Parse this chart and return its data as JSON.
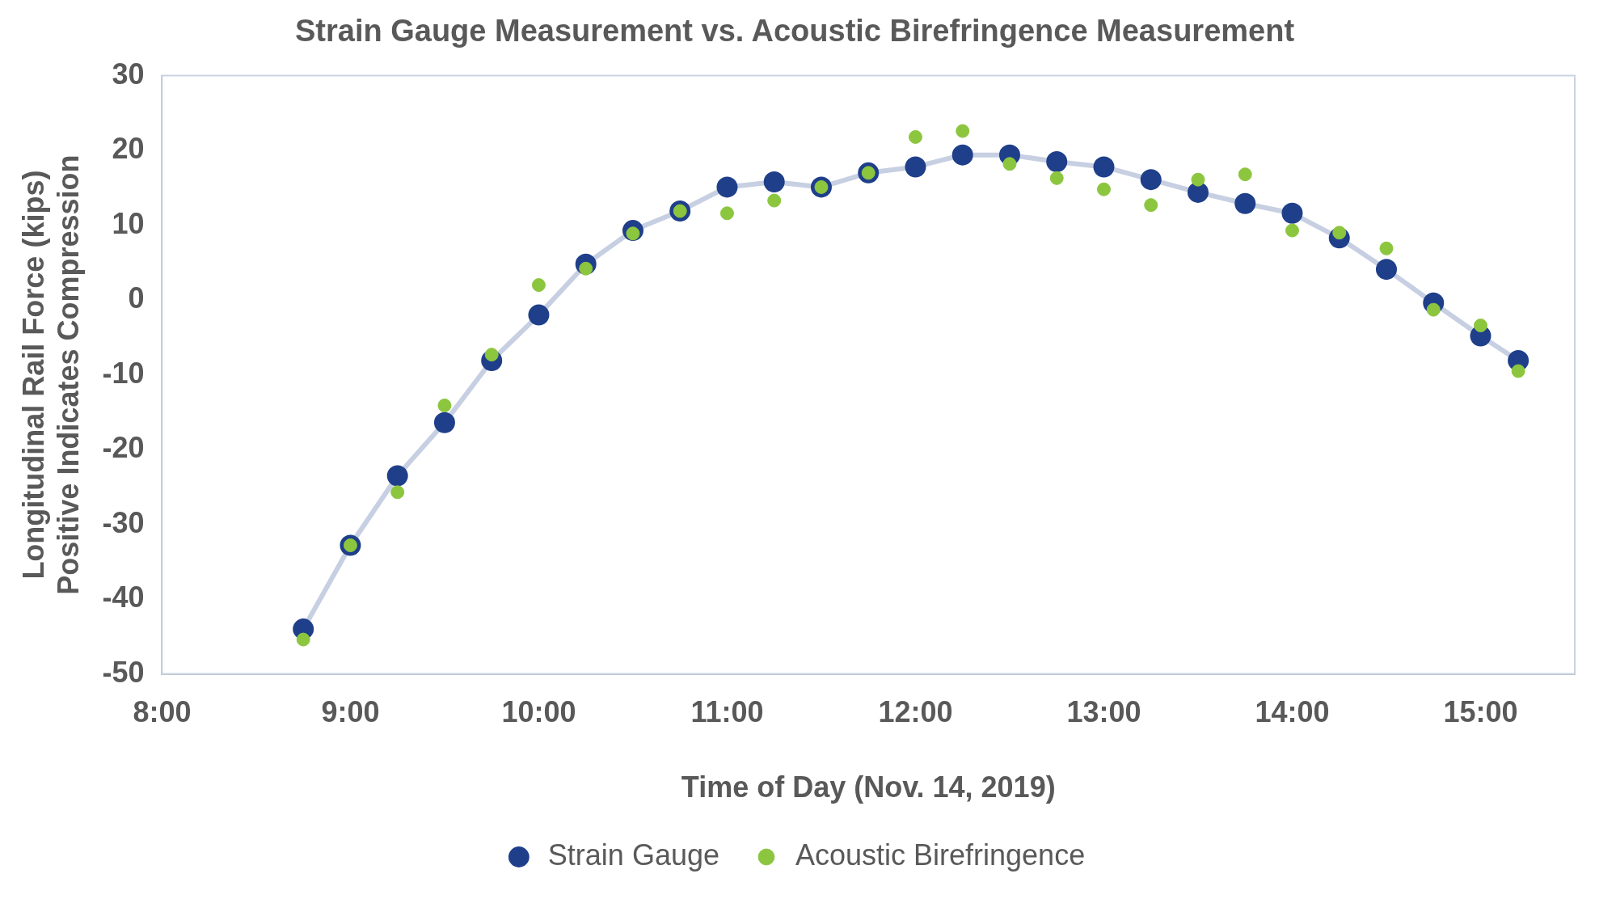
{
  "chart_data": {
    "type": "line",
    "title": "Strain Gauge Measurement vs. Acoustic Birefringence Measurement",
    "xlabel": "Time of Day (Nov. 14, 2019)",
    "ylabel": "Longitudinal Rail Force (kips)\nPositive Indicates Compression",
    "x": [
      8.75,
      9,
      9.25,
      9.5,
      9.75,
      10,
      10.25,
      10.5,
      10.75,
      11,
      11.25,
      11.5,
      11.75,
      12,
      12.25,
      12.5,
      12.75,
      13,
      13.25,
      13.5,
      13.75,
      14,
      14.25,
      14.5,
      14.75,
      15,
      15.2
    ],
    "series": [
      {
        "name": "Strain Gauge",
        "color": "#1f3f8a",
        "values": [
          -44,
          -32.8,
          -23.5,
          -16.4,
          -8.1,
          -2,
          4.8,
          9.3,
          11.9,
          15.1,
          15.8,
          15.1,
          17,
          17.8,
          19.4,
          19.4,
          18.5,
          17.8,
          16.1,
          14.4,
          12.9,
          11.6,
          8.3,
          4.1,
          -0.4,
          -4.8,
          -8.1
        ]
      },
      {
        "name": "Acoustic Birefringence",
        "type": "scatter",
        "color": "#8cc63f",
        "values": [
          -45.4,
          -32.8,
          -25.7,
          -14.1,
          -7.3,
          2,
          4.2,
          8.9,
          11.9,
          11.6,
          13.3,
          15.1,
          17,
          21.8,
          22.6,
          18.2,
          16.3,
          14.8,
          12.7,
          16.1,
          16.8,
          9.3,
          9,
          6.9,
          -1.3,
          -3.4,
          -9.5
        ]
      }
    ],
    "xlim": [
      8,
      15.5
    ],
    "xticks": [
      {
        "value": 8,
        "label": "8:00"
      },
      {
        "value": 9,
        "label": "9:00"
      },
      {
        "value": 10,
        "label": "10:00"
      },
      {
        "value": 11,
        "label": "11:00"
      },
      {
        "value": 12,
        "label": "12:00"
      },
      {
        "value": 13,
        "label": "13:00"
      },
      {
        "value": 14,
        "label": "14:00"
      },
      {
        "value": 15,
        "label": "15:00"
      }
    ],
    "ylim": [
      -50,
      30
    ],
    "yticks": [
      -50,
      -40,
      -30,
      -20,
      -10,
      0,
      10,
      20,
      30
    ],
    "grid": false,
    "legend": "bottom",
    "marker": "circle",
    "line_style": "solid"
  }
}
